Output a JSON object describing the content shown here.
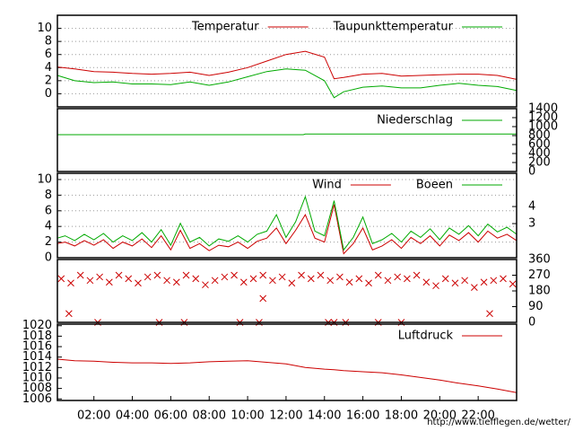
{
  "chart_data": [
    {
      "type": "line",
      "xlim": [
        0.1,
        24
      ],
      "ylim": [
        -2,
        12
      ],
      "yticks": [
        0,
        2,
        4,
        6,
        8,
        10
      ],
      "grid": true,
      "x": [
        0.1,
        1,
        2,
        3,
        4,
        5,
        6,
        7,
        8,
        9,
        10,
        11,
        12,
        13,
        14,
        14.5,
        15,
        16,
        17,
        18,
        19,
        20,
        21,
        22,
        23,
        24
      ],
      "series": [
        {
          "name": "Temperatur",
          "color": "#cc0000",
          "values": [
            4.1,
            3.8,
            3.4,
            3.3,
            3.1,
            3.0,
            3.1,
            3.3,
            2.8,
            3.3,
            4.0,
            5.0,
            6.0,
            6.5,
            5.6,
            2.3,
            2.5,
            3.0,
            3.1,
            2.7,
            2.8,
            2.9,
            3.0,
            3.0,
            2.8,
            2.2
          ]
        },
        {
          "name": "Taupunkttemperatur",
          "color": "#00aa00",
          "values": [
            2.8,
            2.0,
            1.7,
            1.8,
            1.5,
            1.5,
            1.4,
            1.8,
            1.3,
            1.8,
            2.6,
            3.4,
            3.8,
            3.6,
            2.0,
            -0.6,
            0.3,
            1.0,
            1.2,
            0.9,
            0.9,
            1.3,
            1.6,
            1.3,
            1.1,
            0.5
          ]
        }
      ]
    },
    {
      "type": "line",
      "xlim": [
        0.1,
        24
      ],
      "y2lim": [
        0,
        1400
      ],
      "y2ticks": [
        0,
        200,
        400,
        600,
        800,
        1000,
        1200,
        1400
      ],
      "grid": false,
      "x": [
        0.1,
        12.9,
        13,
        24
      ],
      "series": [
        {
          "name": "Niederschlag",
          "color": "#00aa00",
          "axis": "y2",
          "values": [
            820,
            820,
            835,
            835
          ]
        }
      ]
    },
    {
      "type": "line",
      "xlim": [
        0.1,
        24
      ],
      "ylim": [
        0,
        10.8
      ],
      "yticks": [
        0,
        2,
        4,
        6,
        8,
        10
      ],
      "y2lim": [
        1,
        5.95
      ],
      "y2ticks": [
        3,
        4
      ],
      "grid": true,
      "x": [
        0.1,
        0.5,
        1,
        1.5,
        2,
        2.5,
        3,
        3.5,
        4,
        4.5,
        5,
        5.5,
        6,
        6.5,
        7,
        7.5,
        8,
        8.5,
        9,
        9.5,
        10,
        10.5,
        11,
        11.5,
        12,
        12.5,
        13,
        13.5,
        14,
        14.5,
        15,
        15.5,
        16,
        16.5,
        17,
        17.5,
        18,
        18.5,
        19,
        19.5,
        20,
        20.5,
        21,
        21.5,
        22,
        22.5,
        23,
        23.5,
        24
      ],
      "series": [
        {
          "name": "Wind",
          "color": "#cc0000",
          "values": [
            1.8,
            2.0,
            1.5,
            2.2,
            1.6,
            2.3,
            1.2,
            2.0,
            1.5,
            2.4,
            1.3,
            2.8,
            1.0,
            3.5,
            1.2,
            1.8,
            0.9,
            1.6,
            1.4,
            2.0,
            1.2,
            2.1,
            2.5,
            3.8,
            1.8,
            3.5,
            5.5,
            2.5,
            2.0,
            6.8,
            0.5,
            1.8,
            3.8,
            1.0,
            1.5,
            2.3,
            1.2,
            2.6,
            1.8,
            2.8,
            1.5,
            2.9,
            2.2,
            3.2,
            2.0,
            3.4,
            2.5,
            3.0,
            2.2
          ]
        },
        {
          "name": "Boeen",
          "color": "#00aa00",
          "values": [
            2.5,
            2.8,
            2.2,
            3.0,
            2.3,
            3.1,
            2.0,
            2.8,
            2.2,
            3.2,
            2.0,
            3.6,
            1.6,
            4.4,
            2.0,
            2.6,
            1.5,
            2.4,
            2.1,
            2.8,
            2.0,
            3.0,
            3.4,
            5.5,
            2.6,
            4.6,
            7.8,
            3.4,
            2.8,
            7.3,
            1.0,
            2.6,
            5.2,
            1.8,
            2.3,
            3.1,
            2.0,
            3.4,
            2.6,
            3.7,
            2.3,
            3.8,
            3.0,
            4.1,
            2.8,
            4.3,
            3.3,
            3.9,
            3.0
          ]
        }
      ]
    },
    {
      "type": "scatter",
      "xlim": [
        0.1,
        24
      ],
      "y2lim": [
        0,
        360
      ],
      "y2ticks": [
        0,
        90,
        180,
        270,
        360
      ],
      "grid": false,
      "x": [
        0.3,
        0.8,
        1.3,
        1.8,
        2.3,
        2.8,
        3.3,
        3.8,
        4.3,
        4.8,
        5.3,
        5.8,
        6.3,
        6.8,
        7.3,
        7.8,
        8.3,
        8.8,
        9.3,
        9.8,
        10.3,
        10.8,
        11.3,
        11.8,
        12.3,
        12.8,
        13.3,
        13.8,
        14.3,
        14.8,
        15.3,
        15.8,
        16.3,
        16.8,
        17.3,
        17.8,
        18.3,
        18.8,
        19.3,
        19.8,
        20.3,
        20.8,
        21.3,
        21.8,
        22.3,
        22.8,
        23.3,
        23.8,
        0.7,
        2.2,
        5.4,
        6.7,
        9.6,
        10.6,
        14.2,
        14.5,
        15.1,
        16.8,
        18.0,
        10.8,
        22.6
      ],
      "series": [
        {
          "color": "#cc0000",
          "axis": "y2",
          "values": [
            250,
            225,
            270,
            240,
            260,
            230,
            270,
            250,
            225,
            260,
            270,
            240,
            230,
            270,
            250,
            215,
            240,
            260,
            270,
            230,
            250,
            270,
            240,
            260,
            225,
            270,
            250,
            270,
            240,
            260,
            230,
            250,
            225,
            270,
            240,
            260,
            250,
            270,
            230,
            210,
            250,
            225,
            240,
            200,
            230,
            240,
            250,
            220,
            50,
            0,
            0,
            0,
            0,
            0,
            0,
            0,
            0,
            0,
            0,
            137,
            50
          ]
        }
      ]
    },
    {
      "type": "line",
      "xlim": [
        0.1,
        24
      ],
      "ylim": [
        1005.7,
        1020.3
      ],
      "yticks": [
        1006,
        1008,
        1010,
        1012,
        1014,
        1016,
        1018,
        1020
      ],
      "grid": false,
      "xticks": [
        {
          "value": 2,
          "label": "02:00"
        },
        {
          "value": 4,
          "label": "04:00"
        },
        {
          "value": 6,
          "label": "06:00"
        },
        {
          "value": 8,
          "label": "08:00"
        },
        {
          "value": 10,
          "label": "10:00"
        },
        {
          "value": 12,
          "label": "12:00"
        },
        {
          "value": 14,
          "label": "14:00"
        },
        {
          "value": 16,
          "label": "16:00"
        },
        {
          "value": 18,
          "label": "18:00"
        },
        {
          "value": 20,
          "label": "20:00"
        },
        {
          "value": 22,
          "label": "22:00"
        }
      ],
      "x": [
        0.1,
        1,
        2,
        3,
        4,
        5,
        6,
        7,
        8,
        9,
        10,
        11,
        12,
        13,
        14,
        14.5,
        15,
        16,
        17,
        18,
        19,
        20,
        21,
        22,
        23,
        24
      ],
      "series": [
        {
          "name": "Luftdruck",
          "color": "#cc0000",
          "values": [
            1013.6,
            1013.3,
            1013.2,
            1013.0,
            1012.9,
            1012.9,
            1012.8,
            1012.9,
            1013.1,
            1013.2,
            1013.3,
            1013.0,
            1012.7,
            1012.0,
            1011.7,
            1011.6,
            1011.4,
            1011.2,
            1011.0,
            1010.6,
            1010.1,
            1009.6,
            1009.0,
            1008.5,
            1007.9,
            1007.2
          ]
        }
      ]
    }
  ],
  "footer": "http://www.tiefflegen.de/wetter/"
}
